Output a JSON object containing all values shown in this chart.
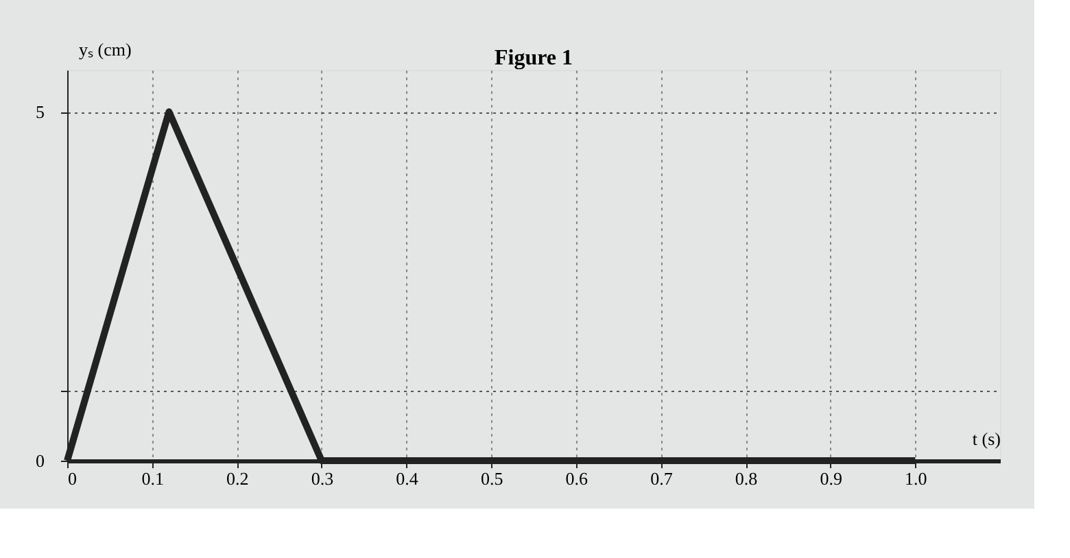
{
  "chart_data": {
    "type": "line",
    "title": "Figure 1",
    "xlabel": "t (s)",
    "ylabel": "yₛ (cm)",
    "x": [
      0,
      0.12,
      0.3,
      1.0
    ],
    "series": [
      {
        "color": "#222222",
        "values": [
          0,
          5,
          0,
          0
        ]
      }
    ],
    "xlim": [
      0,
      1.1
    ],
    "ylim": [
      0,
      5.6
    ],
    "xticks": [
      0,
      0.1,
      0.2,
      0.3,
      0.4,
      0.5,
      0.6,
      0.7,
      0.8,
      0.9,
      {
        "value": 1,
        "label": "1.0"
      }
    ],
    "yticks": [
      0,
      {
        "value": 1,
        "label": null
      },
      5
    ],
    "grid": true,
    "marker": "none",
    "line_style": "solid"
  }
}
